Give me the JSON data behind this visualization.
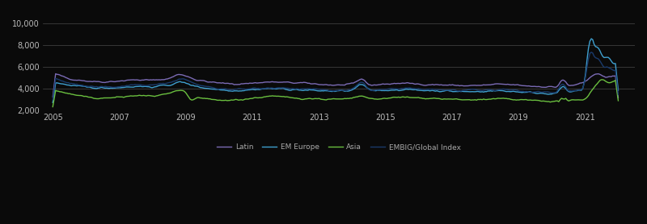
{
  "title": "",
  "xlabel": "",
  "ylabel": "",
  "xlim": [
    2004.7,
    2022.5
  ],
  "ylim": [
    2000,
    11000
  ],
  "yticks": [
    2000,
    4000,
    6000,
    8000,
    10000
  ],
  "xticks": [
    2005,
    2007,
    2009,
    2011,
    2013,
    2015,
    2017,
    2019,
    2021
  ],
  "background_color": "#0a0a0a",
  "plot_bg": "#0a0a0a",
  "grid_color": "#ffffff",
  "legend_labels": [
    "Latin",
    "EM Europe",
    "Asia",
    "EMBIG/Global Index"
  ],
  "series": {
    "latin": {
      "color": "#7b6bb5",
      "lw": 1.0
    },
    "em_europe": {
      "color": "#3fa0d0",
      "lw": 1.0
    },
    "asia": {
      "color": "#6abf3f",
      "lw": 1.0
    },
    "embig": {
      "color": "#1a3a6b",
      "lw": 1.0
    }
  }
}
